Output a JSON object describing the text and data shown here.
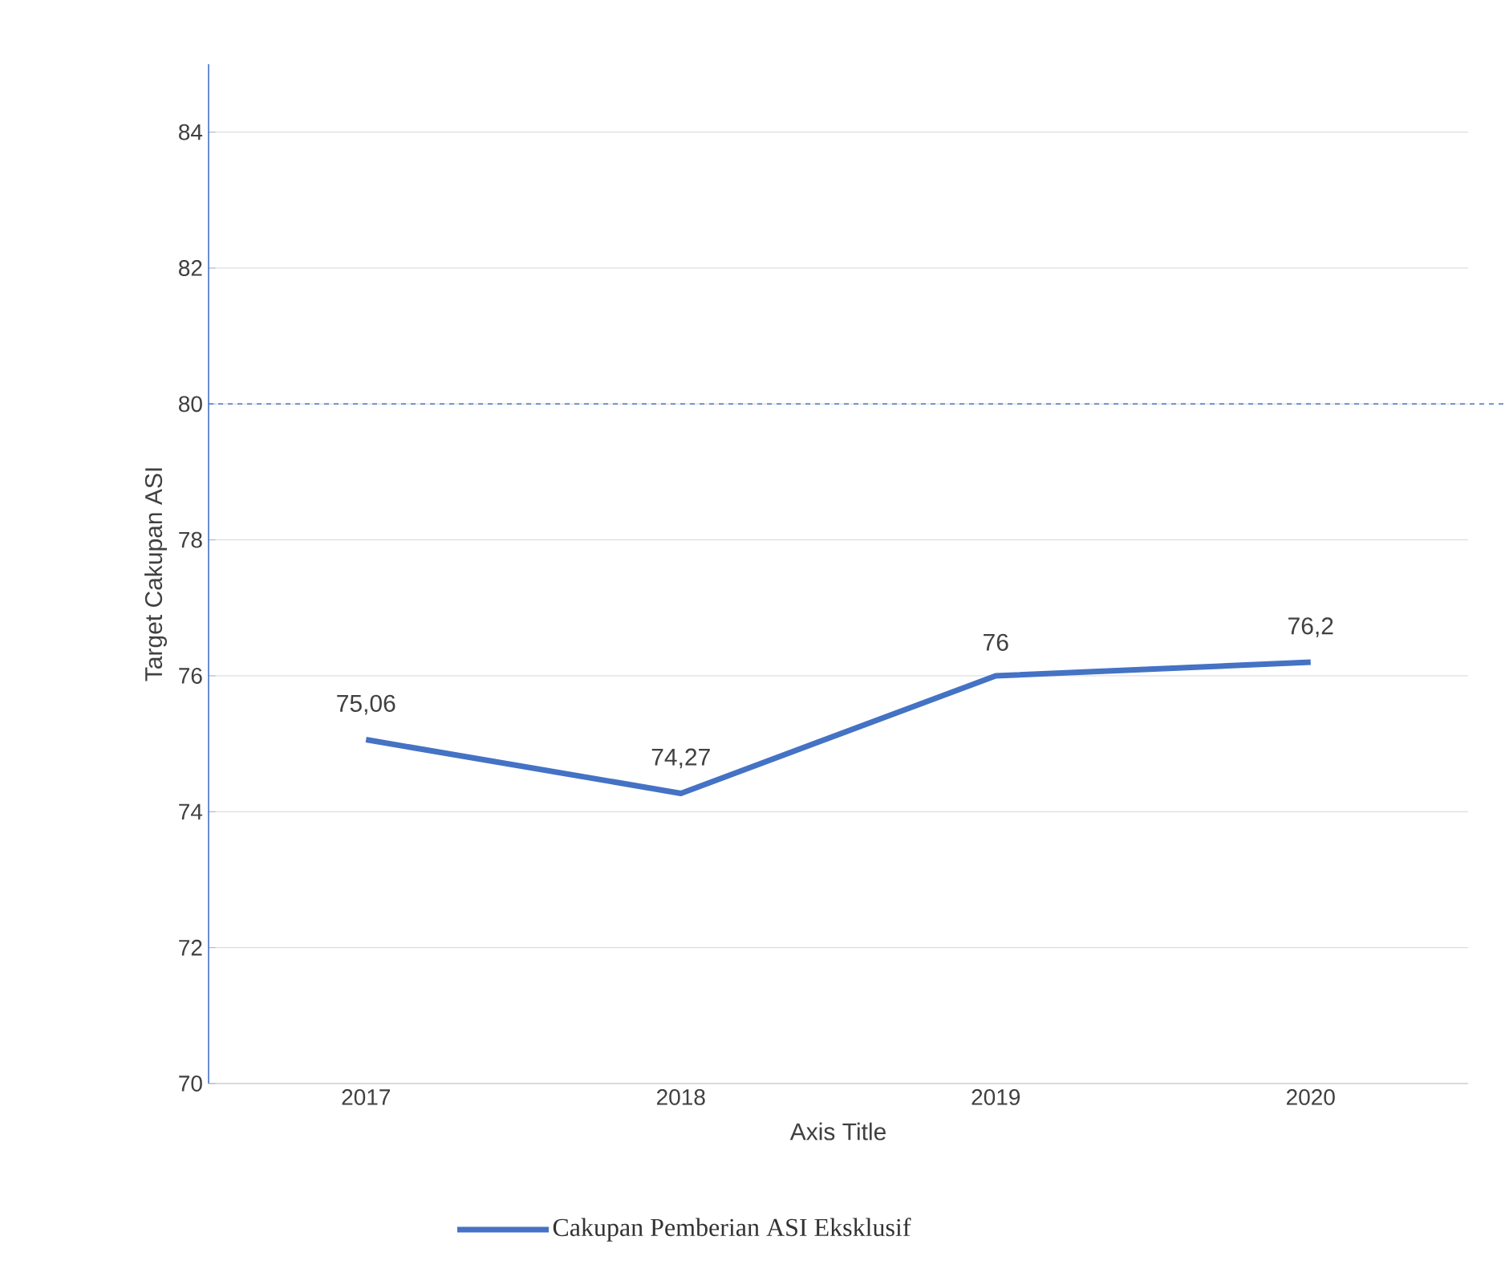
{
  "chart_data": {
    "type": "line",
    "xlabel": "Axis Title",
    "ylabel": "Target Cakupan ASI",
    "categories": [
      "2017",
      "2018",
      "2019",
      "2020"
    ],
    "series": [
      {
        "name": "Cakupan Pemberian ASI Eksklusif",
        "color": "#4472c4",
        "values": [
          75.06,
          74.27,
          76,
          76.2
        ],
        "value_labels": [
          "75,06",
          "74,27",
          "76",
          "76,2"
        ]
      }
    ],
    "ylim": [
      70,
      85
    ],
    "yticks": [
      70,
      72,
      74,
      76,
      78,
      80,
      82,
      84
    ],
    "ref_lines": [
      {
        "axis": "y",
        "value": 80,
        "color": "#4472c4",
        "line_style": "dashed"
      }
    ],
    "grid": "y",
    "legend": "bottom",
    "marker": "none",
    "line_style": "solid"
  }
}
